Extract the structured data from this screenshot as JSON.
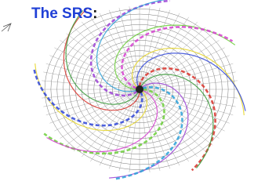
{
  "header": {
    "title": "The SRS",
    "punctuation": ":"
  }
}
